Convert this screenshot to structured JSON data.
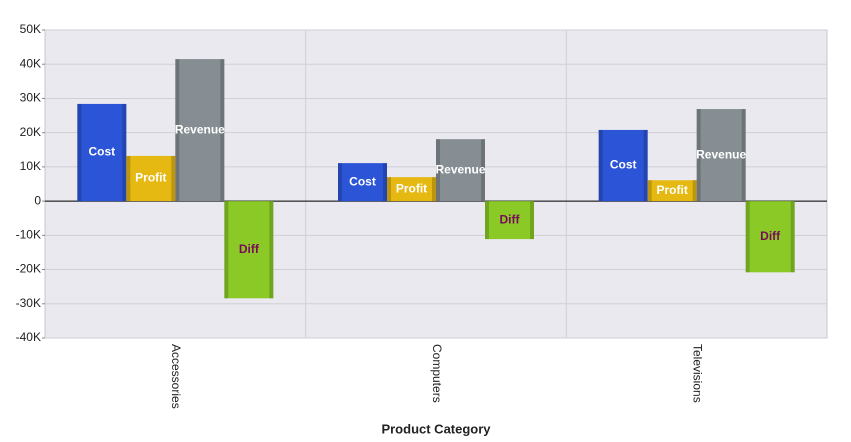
{
  "chart_data": {
    "type": "bar",
    "xlabel": "Product Category",
    "categories": [
      "Accessories",
      "Computers",
      "Televisions"
    ],
    "series": [
      {
        "name": "Cost",
        "color": "#2b55d6",
        "label_color": "#ffffff",
        "values": [
          28400,
          11100,
          20800
        ]
      },
      {
        "name": "Profit",
        "color": "#e5b812",
        "label_color": "#ffffff",
        "values": [
          13200,
          7000,
          6100
        ]
      },
      {
        "name": "Revenue",
        "color": "#868e93",
        "label_color": "#ffffff",
        "values": [
          41500,
          18100,
          26900
        ]
      },
      {
        "name": "Diff",
        "color": "#8ac926",
        "label_color": "#7b0a5a",
        "values": [
          -28400,
          -11100,
          -20800
        ]
      }
    ],
    "ylim": [
      -40000,
      50000
    ],
    "yticks": [
      {
        "value": -40000,
        "label": "-40K"
      },
      {
        "value": -30000,
        "label": "-30K"
      },
      {
        "value": -20000,
        "label": "-20K"
      },
      {
        "value": -10000,
        "label": "-10K"
      },
      {
        "value": 0,
        "label": "0"
      },
      {
        "value": 10000,
        "label": "10K"
      },
      {
        "value": 20000,
        "label": "20K"
      },
      {
        "value": 30000,
        "label": "30K"
      },
      {
        "value": 40000,
        "label": "40K"
      },
      {
        "value": 50000,
        "label": "50K"
      }
    ],
    "grid": true
  }
}
